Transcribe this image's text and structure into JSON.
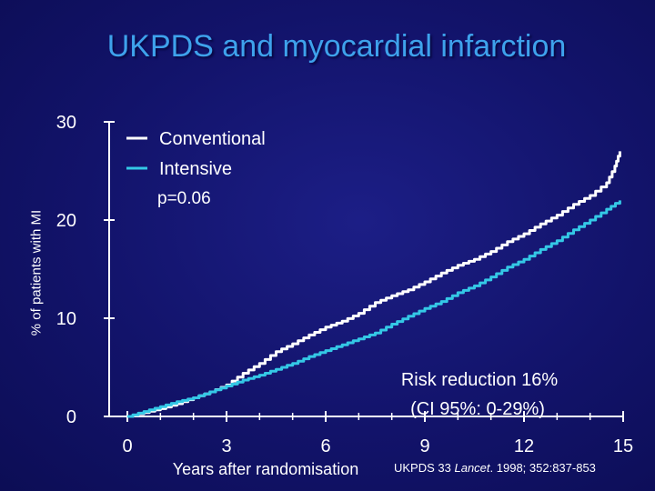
{
  "title": "UKPDS and myocardial infarction",
  "footer": {
    "prefix": "UKPDS 33 ",
    "journal": "Lancet",
    "suffix": ". 1998; 352:837-853"
  },
  "chart_data": {
    "type": "line",
    "title": "UKPDS and myocardial infarction",
    "xlabel": "Years after randomisation",
    "ylabel": "% of patients with MI",
    "xlim": [
      0,
      15
    ],
    "ylim": [
      0,
      30
    ],
    "xticks": [
      0,
      3,
      6,
      9,
      12,
      15
    ],
    "yticks": [
      0,
      10,
      20,
      30
    ],
    "legend_position": "top-left",
    "grid": false,
    "series": [
      {
        "name": "Conventional",
        "color": "#ffffff",
        "x": [
          0,
          0.5,
          1,
          1.5,
          2,
          2.5,
          3,
          3.5,
          4,
          4.5,
          5,
          5.5,
          6,
          6.5,
          7,
          7.5,
          8,
          8.5,
          9,
          9.5,
          10,
          10.5,
          11,
          11.5,
          12,
          12.5,
          13,
          13.5,
          14,
          14.5,
          14.75,
          14.9
        ],
        "values": [
          0,
          0.4,
          0.8,
          1.3,
          1.9,
          2.5,
          3.2,
          4.4,
          5.4,
          6.6,
          7.4,
          8.3,
          9.1,
          9.7,
          10.5,
          11.6,
          12.3,
          12.9,
          13.7,
          14.6,
          15.4,
          16.0,
          16.8,
          17.8,
          18.6,
          19.6,
          20.5,
          21.6,
          22.5,
          23.8,
          25.5,
          27.0
        ]
      },
      {
        "name": "Intensive",
        "color": "#34c8e6",
        "x": [
          0,
          0.5,
          1,
          1.5,
          2,
          2.5,
          3,
          3.5,
          4,
          4.5,
          5,
          5.5,
          6,
          6.5,
          7,
          7.5,
          8,
          8.5,
          9,
          9.5,
          10,
          10.5,
          11,
          11.5,
          12,
          12.5,
          13,
          13.5,
          14,
          14.5,
          14.9
        ],
        "values": [
          0,
          0.5,
          1.0,
          1.5,
          1.9,
          2.5,
          3.1,
          3.7,
          4.2,
          4.8,
          5.4,
          6.1,
          6.7,
          7.3,
          7.9,
          8.5,
          9.4,
          10.2,
          11.0,
          11.7,
          12.6,
          13.3,
          14.2,
          15.2,
          16.0,
          17.0,
          17.9,
          19.0,
          20.0,
          21.1,
          22.0
        ]
      }
    ],
    "annotations": {
      "pvalue": "p=0.06",
      "risk_line1": "Risk reduction 16%",
      "risk_line2": "(CI 95%: 0-29%)"
    }
  }
}
